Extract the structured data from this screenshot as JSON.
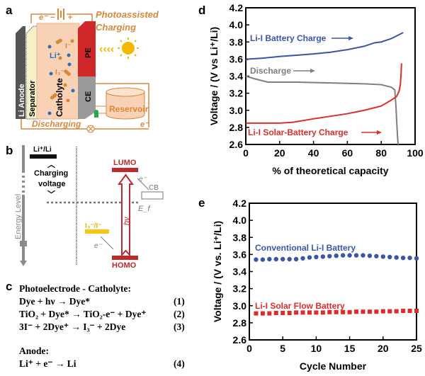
{
  "panels": {
    "a": "a",
    "b": "b",
    "c": "c",
    "d": "d",
    "e": "e"
  },
  "diagram_a": {
    "electron_top": "e⁻",
    "battery_minus": "−",
    "battery_plus": "+",
    "photo_line1": "Photoassisted",
    "photo_line2": "Charging",
    "li_anode": "Li Anode",
    "separator": "Separator",
    "catholyte": "Catholyte",
    "li_ion": "Li⁺",
    "iodide": "I⁻",
    "triiodide": "I₃⁻",
    "pe": "PE",
    "ce": "CE",
    "reservoir": "Reservoir",
    "discharging": "Discharging",
    "electron_bottom": "e⁻",
    "colors": {
      "wire": "#d9873a",
      "catholyte": "#f9d2b5",
      "pe": "#d0272b",
      "ce": "#9a9a9a",
      "sun": "#f5b800"
    }
  },
  "diagram_b": {
    "energy_level": "Energy Level",
    "li_couple": "Li⁺/Li",
    "charging1": "Charging",
    "charging2": "voltage",
    "lumo": "LUMO",
    "homo": "HOMO",
    "hv": "hν",
    "cb": "CB",
    "ef": "E_f",
    "iodine_couple": "I₃⁻/I⁻",
    "electron1": "e⁻",
    "electron2": "e⁻"
  },
  "equations": {
    "heading1": "Photoelectrode - Catholyte:",
    "lines": [
      {
        "eq": "Dye + hν  →  Dye*",
        "num": "(1)"
      },
      {
        "eq": "TiO₂ + Dye* →  TiO₂-e⁻ + Dye⁺",
        "num": "(2)"
      },
      {
        "eq": "3I⁻ + 2Dye⁺ → I₃⁻ + 2Dye",
        "num": "(3)"
      }
    ],
    "heading2": "Anode:",
    "anode": {
      "eq": "Li⁺ + e⁻ →  Li",
      "num": "(4)"
    }
  },
  "chart_data": [
    {
      "type": "line",
      "xlabel": "% of theoretical capacity",
      "ylabel": "Voltage / (V vs Li⁺/Li)",
      "xlim": [
        0,
        100
      ],
      "ylim": [
        2.6,
        4.2
      ],
      "xticks": [
        "0",
        "20",
        "40",
        "60",
        "80",
        "100"
      ],
      "yticks": [
        "2.6",
        "2.8",
        "3.0",
        "3.2",
        "3.4",
        "3.6",
        "3.8",
        "4.0",
        "4.2"
      ],
      "series": [
        {
          "name": "Li-I Battery Charge",
          "color": "#3a56a8",
          "x": [
            0,
            2,
            10,
            20,
            30,
            40,
            50,
            60,
            70,
            76,
            80,
            86,
            90,
            93
          ],
          "y": [
            3.59,
            3.6,
            3.61,
            3.63,
            3.645,
            3.66,
            3.68,
            3.71,
            3.75,
            3.79,
            3.8,
            3.84,
            3.88,
            3.91
          ]
        },
        {
          "name": "Discharge",
          "color": "#7f7f7f",
          "x": [
            0,
            5,
            13,
            30,
            50,
            70,
            80,
            86,
            88,
            88.7,
            89.2,
            89.6,
            90
          ],
          "y": [
            3.4,
            3.37,
            3.33,
            3.33,
            3.32,
            3.31,
            3.3,
            3.27,
            3.24,
            3.05,
            2.85,
            2.7,
            2.6
          ]
        },
        {
          "name": "Li-I Solar-Battery Charge",
          "color": "#e02b2b",
          "x": [
            0,
            10,
            20,
            28,
            40,
            50,
            60,
            70,
            80,
            86,
            89,
            90.5,
            91.3,
            91.7,
            92
          ],
          "y": [
            2.85,
            2.85,
            2.85,
            2.86,
            2.9,
            2.93,
            2.96,
            3.0,
            3.05,
            3.12,
            3.16,
            3.22,
            3.3,
            3.42,
            3.55
          ]
        }
      ]
    },
    {
      "type": "scatter",
      "xlabel": "Cycle Number",
      "ylabel": "Voltage / (V vs. Li⁺/Li)",
      "xlim": [
        0,
        25
      ],
      "ylim": [
        2.6,
        4.2
      ],
      "xticks": [
        "0",
        "5",
        "10",
        "15",
        "20",
        "25"
      ],
      "yticks": [
        "2.6",
        "2.8",
        "3.0",
        "3.2",
        "3.4",
        "3.6",
        "3.8",
        "4.0",
        "4.2"
      ],
      "series": [
        {
          "name": "Conventional Li-I Battery",
          "color": "#3a56a8",
          "marker": "circle",
          "x": [
            1,
            2,
            3,
            4,
            5,
            6,
            7,
            8,
            9,
            10,
            11,
            12,
            13,
            14,
            15,
            16,
            17,
            18,
            19,
            20,
            21,
            22,
            23,
            24,
            25
          ],
          "y": [
            3.54,
            3.54,
            3.545,
            3.545,
            3.545,
            3.545,
            3.545,
            3.555,
            3.565,
            3.57,
            3.575,
            3.58,
            3.585,
            3.59,
            3.59,
            3.59,
            3.59,
            3.585,
            3.58,
            3.575,
            3.57,
            3.565,
            3.56,
            3.56,
            3.555
          ]
        },
        {
          "name": "Li-I Solar Flow Battery",
          "color": "#e02b2b",
          "marker": "square",
          "x": [
            1,
            2,
            3,
            4,
            5,
            6,
            7,
            8,
            9,
            10,
            11,
            12,
            13,
            14,
            15,
            16,
            17,
            18,
            19,
            20,
            21,
            22,
            23,
            24,
            25
          ],
          "y": [
            2.91,
            2.91,
            2.91,
            2.915,
            2.915,
            2.915,
            2.92,
            2.92,
            2.92,
            2.92,
            2.92,
            2.925,
            2.925,
            2.925,
            2.925,
            2.93,
            2.93,
            2.93,
            2.93,
            2.935,
            2.935,
            2.935,
            2.94,
            2.94,
            2.94
          ]
        }
      ]
    }
  ]
}
